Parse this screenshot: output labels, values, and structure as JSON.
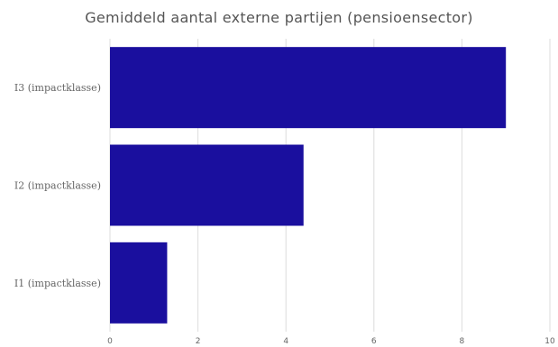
{
  "chart_data": {
    "type": "bar",
    "orientation": "horizontal",
    "title": "Gemiddeld aantal externe partijen (pensioensector)",
    "xlabel": "",
    "ylabel": "",
    "categories": [
      "I3 (impactklasse)",
      "I2 (impactklasse)",
      "I1 (impactklasse)"
    ],
    "series": [
      {
        "values": [
          9.0,
          4.4,
          1.3
        ]
      }
    ],
    "xlim": [
      0,
      10
    ],
    "x_ticks": [
      "0",
      "2",
      "4",
      "6",
      "8",
      "10"
    ],
    "grid": "vertical",
    "legend": "none",
    "bar_color": "#1a0f9e",
    "grid_color": "#dcdcdc"
  }
}
